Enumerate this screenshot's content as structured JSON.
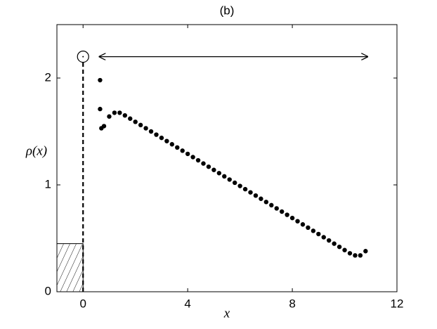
{
  "chart_data": {
    "type": "scatter",
    "title": "(b)",
    "x_label": "x",
    "y_label": "ρ(x)",
    "xlim": [
      -1,
      12
    ],
    "ylim": [
      0,
      2.5
    ],
    "xticks": [
      0,
      4,
      8,
      12
    ],
    "yticks": [
      0,
      1,
      2
    ],
    "grid": false,
    "color": "#000000",
    "x": [
      0.65,
      0.65,
      0.7,
      0.8,
      1.0,
      1.2,
      1.4,
      1.6,
      1.8,
      2.0,
      2.2,
      2.4,
      2.6,
      2.8,
      3.0,
      3.2,
      3.4,
      3.6,
      3.8,
      4.0,
      4.2,
      4.4,
      4.6,
      4.8,
      5.0,
      5.2,
      5.4,
      5.6,
      5.8,
      6.0,
      6.2,
      6.4,
      6.6,
      6.8,
      7.0,
      7.2,
      7.4,
      7.6,
      7.8,
      8.0,
      8.2,
      8.4,
      8.6,
      8.8,
      9.0,
      9.2,
      9.4,
      9.6,
      9.8,
      10.0,
      10.2,
      10.4,
      10.6,
      10.8
    ],
    "values": [
      1.98,
      1.71,
      1.53,
      1.55,
      1.64,
      1.675,
      1.675,
      1.65,
      1.62,
      1.59,
      1.56,
      1.53,
      1.5,
      1.47,
      1.44,
      1.41,
      1.38,
      1.35,
      1.32,
      1.29,
      1.26,
      1.23,
      1.2,
      1.17,
      1.14,
      1.11,
      1.08,
      1.05,
      1.02,
      0.99,
      0.96,
      0.93,
      0.9,
      0.87,
      0.84,
      0.81,
      0.78,
      0.75,
      0.72,
      0.69,
      0.66,
      0.63,
      0.6,
      0.57,
      0.54,
      0.51,
      0.48,
      0.45,
      0.42,
      0.39,
      0.36,
      0.34,
      0.34,
      0.38
    ],
    "point_mass": {
      "x": 0,
      "y": 2.2
    },
    "block": {
      "x": [
        -1,
        0
      ],
      "height": 0.45
    },
    "arrow": {
      "x": [
        0.6,
        10.9
      ],
      "y": 2.2
    }
  }
}
